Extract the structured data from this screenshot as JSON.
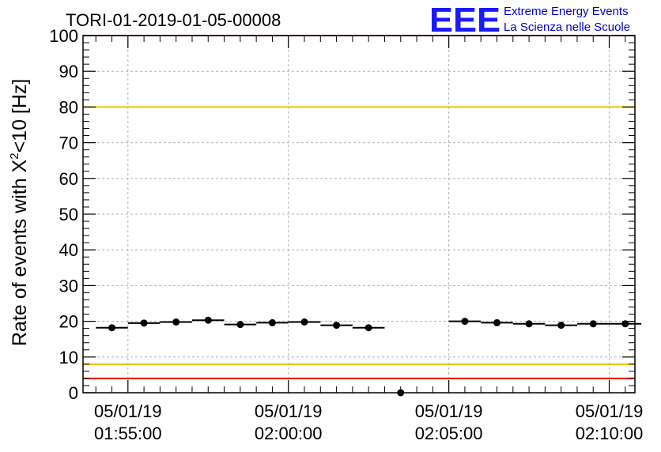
{
  "title": "TORI-01-2019-01-05-00008",
  "logo": {
    "mark": "EEE",
    "line1": "Extreme Energy Events",
    "line2": "La Scienza nelle Scuole"
  },
  "chart_data": {
    "type": "scatter",
    "title": "TORI-01-2019-01-05-00008",
    "ylabel_prefix": "Rate of events with X",
    "ylabel_sup": "2",
    "ylabel_suffix": "<10 [Hz]",
    "xlabel": "",
    "ylim": [
      0,
      100
    ],
    "yticks": [
      0,
      10,
      20,
      30,
      40,
      50,
      60,
      70,
      80,
      90,
      100
    ],
    "xlim_minutes": [
      -1.4,
      15.8
    ],
    "xticks": [
      {
        "minute": 0,
        "date": "05/01/19",
        "time": "01:55:00"
      },
      {
        "minute": 5,
        "date": "05/01/19",
        "time": "02:00:00"
      },
      {
        "minute": 10,
        "date": "05/01/19",
        "time": "02:05:00"
      },
      {
        "minute": 15,
        "date": "05/01/19",
        "time": "02:10:00"
      }
    ],
    "grid": true,
    "bin_width_minutes": 1,
    "points": [
      {
        "x": -0.5,
        "y": 18.2
      },
      {
        "x": 0.5,
        "y": 19.5
      },
      {
        "x": 1.5,
        "y": 19.8
      },
      {
        "x": 2.5,
        "y": 20.3
      },
      {
        "x": 3.5,
        "y": 19.1
      },
      {
        "x": 4.5,
        "y": 19.6
      },
      {
        "x": 5.5,
        "y": 19.8
      },
      {
        "x": 6.5,
        "y": 18.9
      },
      {
        "x": 7.5,
        "y": 18.2
      },
      {
        "x": 8.5,
        "y": 0
      },
      {
        "x": 10.5,
        "y": 20.0
      },
      {
        "x": 11.5,
        "y": 19.6
      },
      {
        "x": 12.5,
        "y": 19.3
      },
      {
        "x": 13.5,
        "y": 18.9
      },
      {
        "x": 14.5,
        "y": 19.3
      },
      {
        "x": 15.5,
        "y": 19.3
      }
    ],
    "reference_lines": [
      {
        "y": 80,
        "color": "#f0c000"
      },
      {
        "y": 8,
        "color": "#f0c000"
      },
      {
        "y": 4,
        "color": "#ee0000"
      },
      {
        "y": 100,
        "color": "#ee0000"
      }
    ]
  }
}
